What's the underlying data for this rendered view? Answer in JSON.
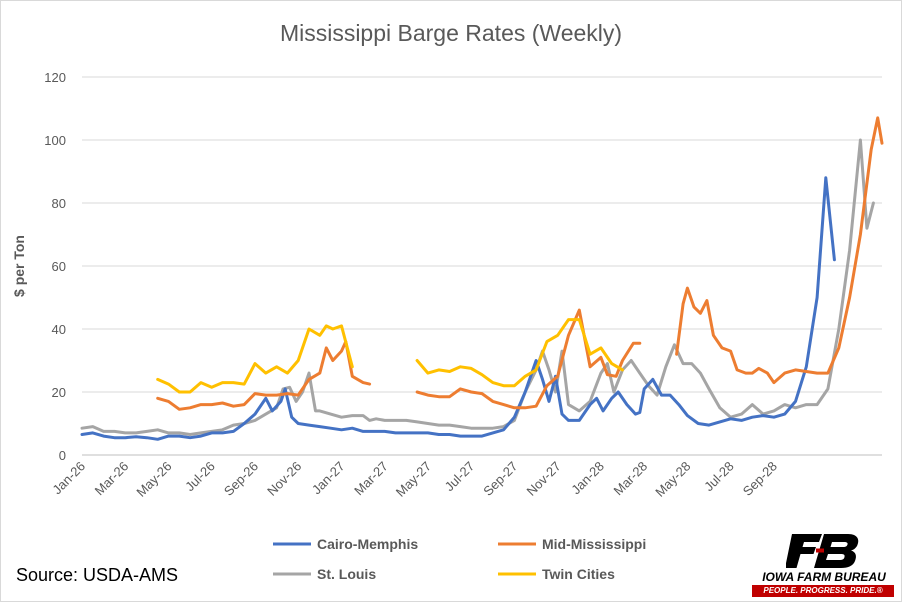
{
  "chart_data": {
    "type": "line",
    "title": "Mississippi Barge Rates (Weekly)",
    "xlabel": "",
    "ylabel": "$ per Ton",
    "ylim": [
      0,
      120
    ],
    "yticks": [
      0,
      20,
      40,
      60,
      80,
      100,
      120
    ],
    "grid": true,
    "legend_position": "bottom",
    "x_labels": [
      "Jan-26",
      "Mar-26",
      "May-26",
      "Jul-26",
      "Sep-26",
      "Nov-26",
      "Jan-27",
      "Mar-27",
      "May-27",
      "Jul-27",
      "Sep-27",
      "Nov-27",
      "Jan-28",
      "Mar-28",
      "May-28",
      "Jul-28",
      "Sep-28"
    ],
    "series": [
      {
        "name": "Cairo-Memphis",
        "color": "#4472c4",
        "points": [
          [
            0,
            6.5
          ],
          [
            0.5,
            7
          ],
          [
            1,
            6
          ],
          [
            1.5,
            5.5
          ],
          [
            2,
            5.5
          ],
          [
            2.5,
            5.8
          ],
          [
            3,
            5.5
          ],
          [
            3.5,
            5
          ],
          [
            4,
            6
          ],
          [
            4.5,
            6
          ],
          [
            5,
            5.5
          ],
          [
            5.5,
            6
          ],
          [
            6,
            7
          ],
          [
            6.5,
            7
          ],
          [
            7,
            7.5
          ],
          [
            7.5,
            10
          ],
          [
            8,
            13
          ],
          [
            8.5,
            18
          ],
          [
            8.8,
            14
          ],
          [
            9.2,
            17
          ],
          [
            9.4,
            21
          ],
          [
            9.7,
            12
          ],
          [
            10,
            10
          ],
          [
            10.5,
            9.5
          ],
          [
            11,
            9
          ],
          [
            11.5,
            8.5
          ],
          [
            12,
            8
          ],
          [
            12.5,
            8.5
          ],
          [
            13,
            7.5
          ],
          [
            13.5,
            7.5
          ],
          [
            14,
            7.5
          ],
          [
            14.5,
            7
          ],
          [
            15,
            7
          ],
          [
            15.5,
            7
          ],
          [
            16,
            7
          ],
          [
            16.5,
            6.5
          ],
          [
            17,
            6.5
          ],
          [
            17.5,
            6
          ],
          [
            18,
            6
          ],
          [
            18.5,
            6
          ],
          [
            19,
            7
          ],
          [
            19.5,
            8
          ],
          [
            20,
            12
          ],
          [
            20.5,
            20
          ],
          [
            21,
            30
          ],
          [
            21.3,
            24
          ],
          [
            21.6,
            17
          ],
          [
            21.9,
            25
          ],
          [
            22.2,
            13
          ],
          [
            22.5,
            11
          ],
          [
            23,
            11
          ],
          [
            23.5,
            16
          ],
          [
            23.8,
            18
          ],
          [
            24.1,
            14
          ],
          [
            24.5,
            18
          ],
          [
            24.8,
            20
          ],
          [
            25.2,
            16
          ],
          [
            25.6,
            13
          ],
          [
            25.8,
            13.5
          ],
          [
            26,
            21
          ],
          [
            26.4,
            24
          ],
          [
            26.8,
            19
          ],
          [
            27.2,
            19
          ],
          [
            27.6,
            16
          ],
          [
            28,
            12.5
          ],
          [
            28.5,
            10
          ],
          [
            29,
            9.5
          ],
          [
            29.5,
            10.5
          ],
          [
            30,
            11.5
          ],
          [
            30.5,
            11
          ],
          [
            31,
            12
          ],
          [
            31.5,
            12.5
          ],
          [
            32,
            12
          ],
          [
            32.5,
            13
          ],
          [
            33,
            17
          ],
          [
            33.5,
            28
          ],
          [
            34,
            50
          ],
          [
            34.4,
            88
          ],
          [
            34.8,
            62
          ]
        ]
      },
      {
        "name": "Mid-Mississippi",
        "color": "#ed7d31",
        "points": [
          [
            3.5,
            18
          ],
          [
            4,
            17
          ],
          [
            4.5,
            14.5
          ],
          [
            5,
            15
          ],
          [
            5.5,
            16
          ],
          [
            6,
            16
          ],
          [
            6.5,
            16.5
          ],
          [
            7,
            15.5
          ],
          [
            7.5,
            16
          ],
          [
            8,
            19.5
          ],
          [
            8.5,
            19
          ],
          [
            9,
            19
          ],
          [
            9.5,
            19.5
          ],
          [
            10,
            19
          ],
          [
            10.5,
            24
          ],
          [
            11,
            26
          ],
          [
            11.3,
            34
          ],
          [
            11.6,
            30
          ],
          [
            12,
            33
          ],
          [
            12.2,
            36
          ],
          [
            12.5,
            25
          ],
          [
            13,
            23
          ],
          [
            13.3,
            22.5
          ],
          null,
          [
            15.5,
            20
          ],
          [
            16,
            19
          ],
          [
            16.5,
            18.5
          ],
          [
            17,
            18.5
          ],
          [
            17.5,
            21
          ],
          [
            18,
            20
          ],
          [
            18.5,
            19.5
          ],
          [
            19,
            17
          ],
          [
            19.5,
            16
          ],
          [
            20,
            15
          ],
          [
            20.5,
            15
          ],
          [
            21,
            15.5
          ],
          [
            21.5,
            22
          ],
          [
            22,
            25
          ],
          [
            22.5,
            38
          ],
          [
            23,
            46
          ],
          [
            23.5,
            28
          ],
          [
            24,
            31
          ],
          [
            24.3,
            25.5
          ],
          [
            24.7,
            25
          ],
          [
            25,
            30
          ],
          [
            25.5,
            35.5
          ],
          [
            25.8,
            35.5
          ],
          null,
          [
            27.5,
            32
          ],
          [
            27.8,
            48
          ],
          [
            28,
            53
          ],
          [
            28.3,
            47
          ],
          [
            28.6,
            45
          ],
          [
            28.9,
            49
          ],
          [
            29.2,
            38
          ],
          [
            29.6,
            34
          ],
          [
            30,
            33
          ],
          [
            30.3,
            27
          ],
          [
            30.7,
            26
          ],
          [
            31,
            26
          ],
          [
            31.3,
            27.5
          ],
          [
            31.7,
            26
          ],
          [
            32,
            23
          ],
          [
            32.5,
            26
          ],
          [
            33,
            27
          ],
          [
            33.5,
            26.5
          ],
          [
            34,
            26
          ],
          [
            34.5,
            26
          ],
          [
            35,
            34
          ],
          [
            35.5,
            50
          ],
          [
            36,
            70
          ],
          [
            36.5,
            97
          ],
          [
            36.8,
            107
          ],
          [
            37,
            99
          ]
        ]
      },
      {
        "name": "St. Louis",
        "color": "#a5a5a5",
        "points": [
          [
            0,
            8.5
          ],
          [
            0.5,
            9
          ],
          [
            1,
            7.5
          ],
          [
            1.5,
            7.5
          ],
          [
            2,
            7
          ],
          [
            2.5,
            7
          ],
          [
            3,
            7.5
          ],
          [
            3.5,
            8
          ],
          [
            4,
            7
          ],
          [
            4.5,
            7
          ],
          [
            5,
            6.5
          ],
          [
            5.5,
            7
          ],
          [
            6,
            7.5
          ],
          [
            6.5,
            8
          ],
          [
            7,
            9.5
          ],
          [
            7.5,
            10
          ],
          [
            8,
            11
          ],
          [
            8.5,
            13
          ],
          [
            9,
            15
          ],
          [
            9.3,
            21
          ],
          [
            9.6,
            21.5
          ],
          [
            9.9,
            17
          ],
          [
            10.2,
            20
          ],
          [
            10.5,
            26
          ],
          [
            10.8,
            14
          ],
          [
            11,
            14
          ],
          [
            11.5,
            13
          ],
          [
            12,
            12
          ],
          [
            12.5,
            12.5
          ],
          [
            13,
            12.5
          ],
          [
            13.3,
            11
          ],
          [
            13.6,
            11.5
          ],
          [
            14,
            11
          ],
          [
            14.5,
            11
          ],
          [
            15,
            11
          ],
          [
            15.5,
            10.5
          ],
          [
            16,
            10
          ],
          [
            16.5,
            9.5
          ],
          [
            17,
            9.5
          ],
          [
            17.5,
            9
          ],
          [
            18,
            8.5
          ],
          [
            18.5,
            8.5
          ],
          [
            19,
            8.5
          ],
          [
            19.5,
            9
          ],
          [
            20,
            11
          ],
          [
            20.5,
            20
          ],
          [
            21,
            27
          ],
          [
            21.3,
            33
          ],
          [
            21.6,
            27
          ],
          [
            21.9,
            20
          ],
          [
            22.2,
            33
          ],
          [
            22.5,
            16
          ],
          [
            23,
            14
          ],
          [
            23.5,
            17
          ],
          [
            24,
            26
          ],
          [
            24.3,
            29
          ],
          [
            24.6,
            20
          ],
          [
            25,
            27
          ],
          [
            25.4,
            30
          ],
          [
            25.8,
            26
          ],
          [
            26.2,
            22
          ],
          [
            26.6,
            19
          ],
          [
            27,
            28
          ],
          [
            27.4,
            35
          ],
          [
            27.8,
            29
          ],
          [
            28.2,
            29
          ],
          [
            28.6,
            26
          ],
          [
            29,
            21
          ],
          [
            29.5,
            15
          ],
          [
            30,
            12
          ],
          [
            30.5,
            13
          ],
          [
            31,
            16
          ],
          [
            31.5,
            13
          ],
          [
            32,
            14
          ],
          [
            32.5,
            16
          ],
          [
            33,
            15
          ],
          [
            33.5,
            16
          ],
          [
            34,
            16
          ],
          [
            34.5,
            21
          ],
          [
            35,
            40
          ],
          [
            35.5,
            65
          ],
          [
            36,
            100
          ],
          [
            36.3,
            72
          ],
          [
            36.6,
            80
          ]
        ]
      },
      {
        "name": "Twin Cities",
        "color": "#ffc000",
        "points": [
          [
            3.5,
            24
          ],
          [
            4,
            22.5
          ],
          [
            4.5,
            20
          ],
          [
            5,
            20
          ],
          [
            5.5,
            23
          ],
          [
            6,
            21.5
          ],
          [
            6.5,
            23
          ],
          [
            7,
            23
          ],
          [
            7.5,
            22.5
          ],
          [
            8,
            29
          ],
          [
            8.5,
            26
          ],
          [
            9,
            28
          ],
          [
            9.5,
            26
          ],
          [
            10,
            30
          ],
          [
            10.5,
            40
          ],
          [
            11,
            38
          ],
          [
            11.3,
            41
          ],
          [
            11.6,
            40
          ],
          [
            12,
            41
          ],
          [
            12.5,
            28
          ],
          null,
          [
            15.5,
            30
          ],
          [
            16,
            26
          ],
          [
            16.5,
            27
          ],
          [
            17,
            26.5
          ],
          [
            17.5,
            28
          ],
          [
            18,
            27.5
          ],
          [
            18.5,
            25.5
          ],
          [
            19,
            23
          ],
          [
            19.5,
            22
          ],
          [
            20,
            22
          ],
          [
            20.5,
            25
          ],
          [
            21,
            27
          ],
          [
            21.5,
            36
          ],
          [
            22,
            38
          ],
          [
            22.5,
            43
          ],
          [
            23,
            43
          ],
          [
            23.5,
            32
          ],
          [
            24,
            34
          ],
          [
            24.5,
            29
          ],
          [
            25,
            27
          ]
        ]
      }
    ]
  },
  "source_text": "Source: USDA-AMS",
  "logo": {
    "name": "IOWA FARM BUREAU",
    "tagline": "PEOPLE. PROGRESS. PRIDE.®",
    "mark": "FB"
  }
}
